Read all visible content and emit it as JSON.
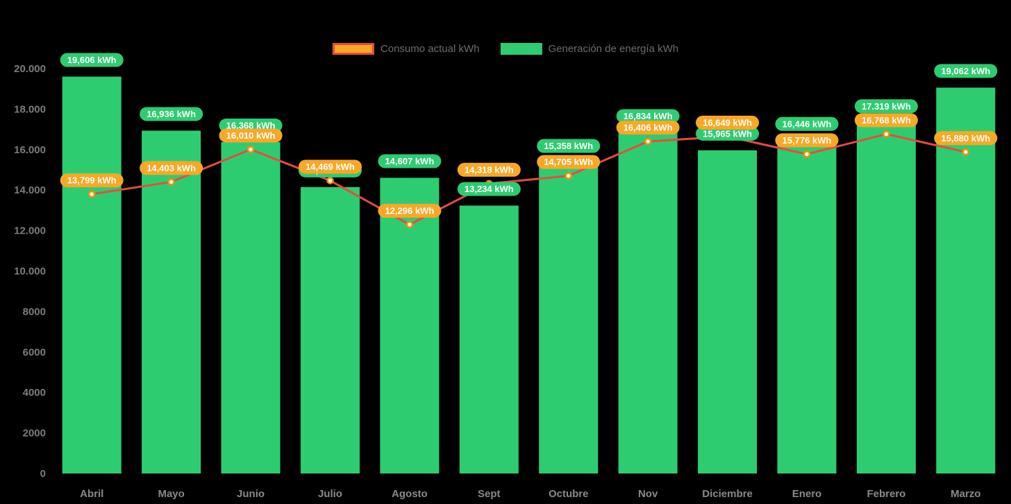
{
  "legend": {
    "consumo_label": "Consumo actual kWh",
    "generacion_label": "Generación de energía kWh"
  },
  "colors": {
    "background": "#000000",
    "bar": "#2ecc71",
    "bar_label_bg": "#2ecc71",
    "line": "#e74c3c",
    "line_label_bg": "#f9a825",
    "point_fill": "#ffffff",
    "point_stroke": "#fb8c00",
    "label_text": "#ffffff",
    "y_axis_text": "#7d7d7d",
    "x_axis_text": "#8a8a8a",
    "legend_text": "#6e6e6e"
  },
  "chart_data": {
    "type": "bar",
    "subtype": "bar+line-combo",
    "categories": [
      "Abril",
      "Mayo",
      "Junio",
      "Julio",
      "Agosto",
      "Sept",
      "Octubre",
      "Nov",
      "Diciembre",
      "Enero",
      "Febrero",
      "Marzo"
    ],
    "series": [
      {
        "name": "Consumo actual kWh",
        "type": "line",
        "values": [
          13799,
          14403,
          16010,
          14469,
          12296,
          14318,
          14705,
          16406,
          16649,
          15776,
          16768,
          15880
        ],
        "labels": [
          "13,799 kWh",
          "14,403 kWh",
          "16,010 kWh",
          "14,469 kWh",
          "12,296 kWh",
          "14,318 kWh",
          "14,705 kWh",
          "16,406 kWh",
          "16,649 kWh",
          "15,776 kWh",
          "16,768 kWh",
          "15,880 kWh"
        ]
      },
      {
        "name": "Generación de energía kWh",
        "type": "bar",
        "values": [
          19606,
          16936,
          16368,
          14150,
          14607,
          13234,
          15358,
          16834,
          15965,
          16446,
          17319,
          19062
        ],
        "labels": [
          "19,606 kWh",
          "16,936 kWh",
          "16,368 kWh",
          "14,150 kWh",
          "14,607 kWh",
          "13,234 kWh",
          "15,358 kWh",
          "16,834 kWh",
          "15,965 kWh",
          "16,446 kWh",
          "17.319 kWh",
          "19,062 kWh"
        ]
      }
    ],
    "ylim": [
      0,
      20000
    ],
    "yticks": {
      "values": [
        20000,
        18000,
        16000,
        14000,
        12000,
        10000,
        8000,
        6000,
        4000,
        2000,
        0
      ],
      "labels": [
        "20.000",
        "18.000",
        "16.000",
        "14.000",
        "12.000",
        "10.000",
        "8000",
        "6000",
        "4000",
        "2000",
        "0"
      ]
    },
    "grid": false,
    "legend_position": "top"
  }
}
